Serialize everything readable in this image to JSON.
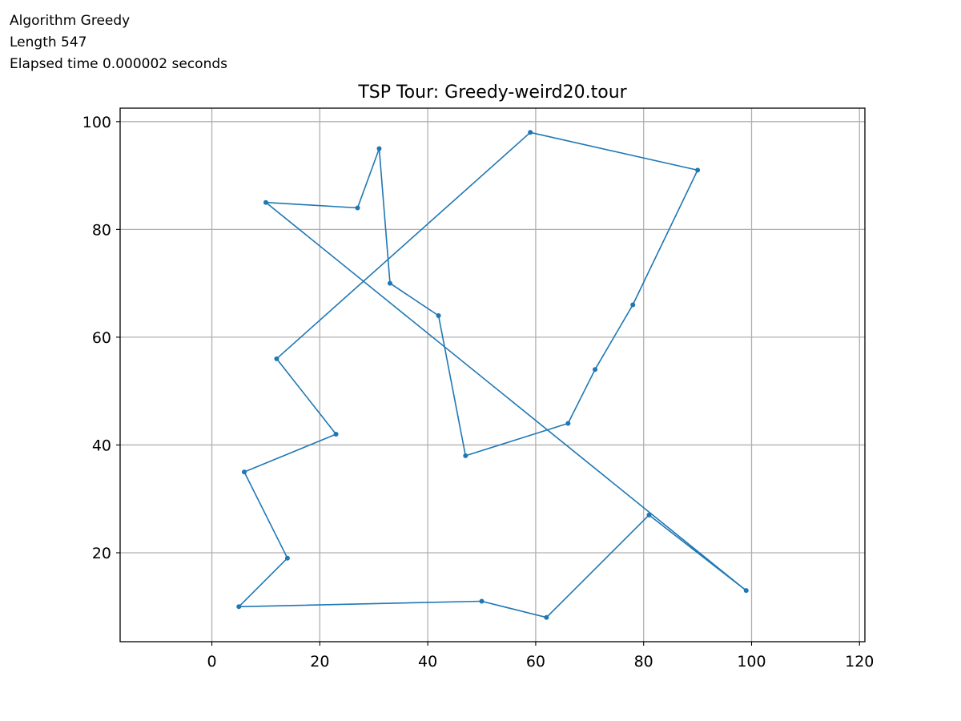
{
  "info": {
    "algorithm": "Algorithm Greedy",
    "length": "Length 547",
    "elapsed": "Elapsed time 0.000002 seconds"
  },
  "chart_data": {
    "type": "line",
    "title": "TSP Tour: Greedy-weird20.tour",
    "xlabel": "",
    "ylabel": "",
    "xlim": [
      -17,
      121
    ],
    "ylim": [
      3.5,
      102.5
    ],
    "xticks": [
      0,
      20,
      40,
      60,
      80,
      100,
      120
    ],
    "yticks": [
      20,
      40,
      60,
      80,
      100
    ],
    "grid": true,
    "color": "#1f77b4",
    "grid_color": "#b0b0b0",
    "series": [
      {
        "x": [
          10,
          27,
          31,
          33,
          42,
          47,
          66,
          71,
          78,
          90,
          59,
          12,
          23,
          6,
          14,
          5,
          50,
          62,
          81,
          99,
          10
        ],
        "y": [
          85,
          84,
          95,
          70,
          64,
          38,
          44,
          54,
          66,
          91,
          98,
          56,
          42,
          35,
          19,
          10,
          11,
          8,
          27,
          13,
          85
        ]
      }
    ]
  }
}
